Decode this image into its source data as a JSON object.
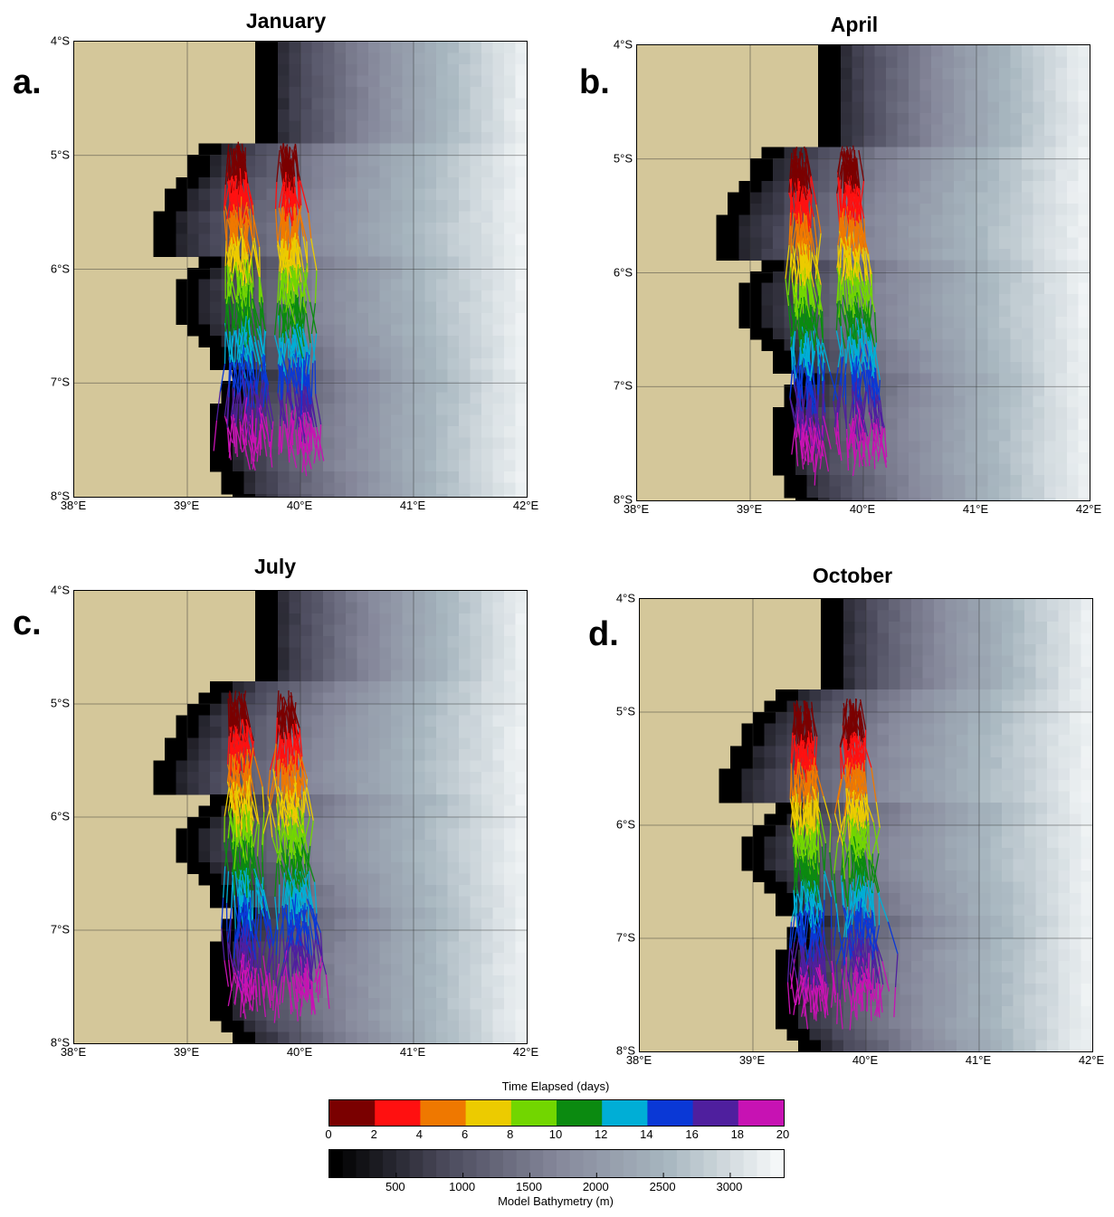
{
  "panels": [
    {
      "id": "a",
      "letter": "a.",
      "title": "January"
    },
    {
      "id": "b",
      "letter": "b.",
      "title": "April"
    },
    {
      "id": "c",
      "letter": "c.",
      "title": "July"
    },
    {
      "id": "d",
      "letter": "d.",
      "title": "October"
    }
  ],
  "lat_labels": [
    "4°S",
    "5°S",
    "6°S",
    "7°S",
    "8°S"
  ],
  "lon_labels": [
    "38°E",
    "39°E",
    "40°E",
    "41°E",
    "42°E"
  ],
  "time_colorbar": {
    "title": "Time Elapsed (days)",
    "ticks": [
      "0",
      "2",
      "4",
      "6",
      "8",
      "10",
      "12",
      "14",
      "16",
      "18",
      "20"
    ],
    "colors": [
      "#7a0000",
      "#ff1010",
      "#ef7800",
      "#eccb00",
      "#72d600",
      "#0b8a10",
      "#00aed6",
      "#0a38d6",
      "#4f1f9e",
      "#c712b3"
    ]
  },
  "bathy_colorbar": {
    "title": "Model Bathymetry (m)",
    "ticks": [
      "500",
      "1000",
      "1500",
      "2000",
      "2500",
      "3000"
    ],
    "tick_values": [
      500,
      1000,
      1500,
      2000,
      2500,
      3000
    ],
    "range": [
      0,
      3400
    ],
    "colors": [
      "#000000",
      "#4b4a5c",
      "#85879a",
      "#a7b6bf",
      "#f4f7f8"
    ]
  },
  "land_color": "#d4c79a"
}
